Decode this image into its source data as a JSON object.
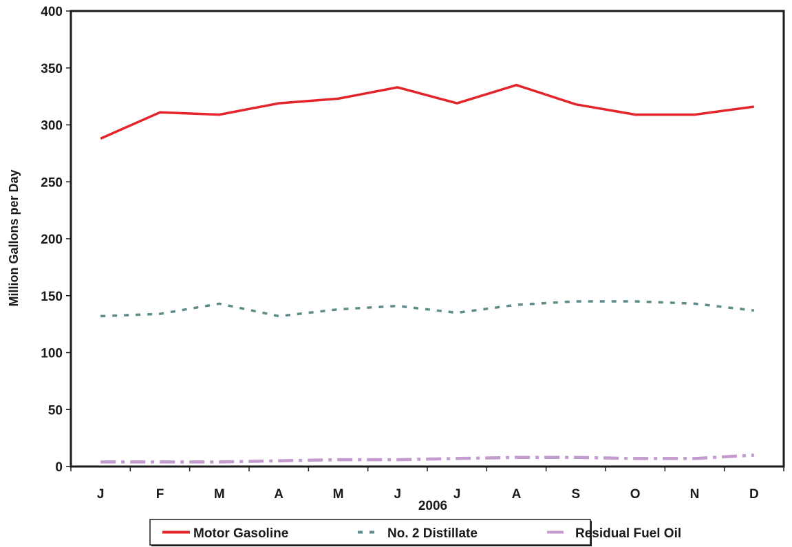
{
  "chart_data": {
    "type": "line",
    "title": "",
    "xlabel": "2006",
    "ylabel": "Million Gallons per Day",
    "categories": [
      "J",
      "F",
      "M",
      "A",
      "M",
      "J",
      "J",
      "A",
      "S",
      "O",
      "N",
      "D"
    ],
    "ylim": [
      0,
      400
    ],
    "yticks": [
      0,
      50,
      100,
      150,
      200,
      250,
      300,
      350,
      400
    ],
    "grid": false,
    "legend_position": "bottom",
    "series": [
      {
        "name": "Motor Gasoline",
        "color": "#e3242b",
        "line_style": "solid",
        "values": [
          288,
          311,
          309,
          319,
          323,
          333,
          319,
          335,
          318,
          309,
          309,
          316
        ]
      },
      {
        "name": "No. 2 Distillate",
        "color": "#5e8c8a",
        "line_style": "dashed",
        "values": [
          132,
          134,
          143,
          132,
          138,
          141,
          135,
          142,
          145,
          145,
          143,
          137
        ]
      },
      {
        "name": "Residual Fuel Oil",
        "color": "#c39bcf",
        "line_style": "dash-dot",
        "values": [
          4,
          4,
          4,
          5,
          6,
          6,
          7,
          8,
          8,
          7,
          7,
          10
        ]
      }
    ]
  }
}
